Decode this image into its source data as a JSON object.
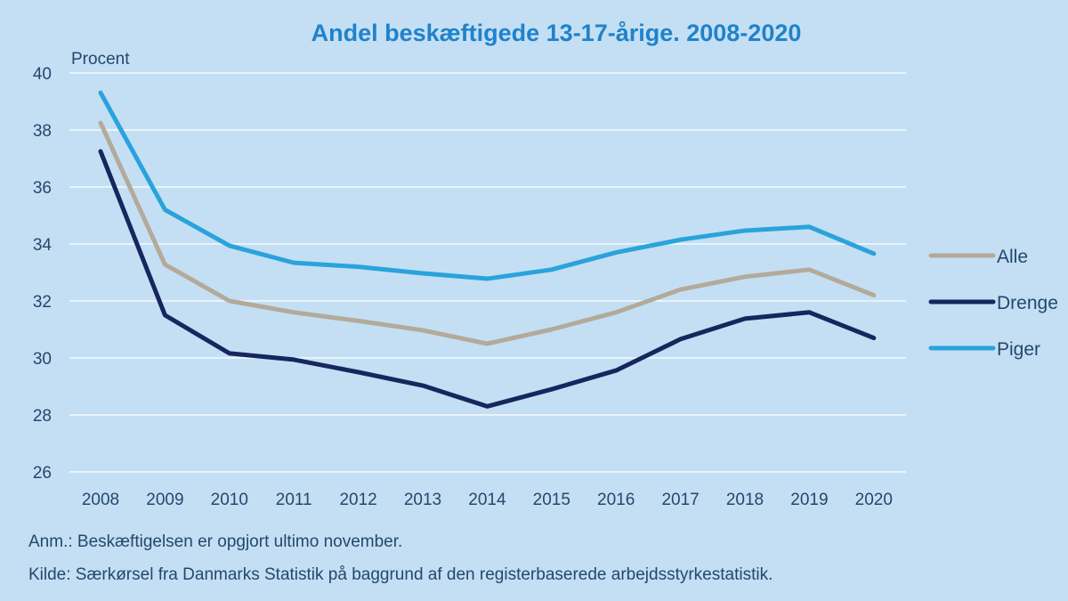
{
  "chart_data": {
    "type": "line",
    "title": "Andel beskæftigede 13-17-årige. 2008-2020",
    "ylabel": "Procent",
    "xlabel": "",
    "ylim": [
      26,
      40
    ],
    "yticks": [
      26,
      28,
      30,
      32,
      34,
      36,
      38,
      40
    ],
    "grid": true,
    "legend_position": "right",
    "categories": [
      "2008",
      "2009",
      "2010",
      "2011",
      "2012",
      "2013",
      "2014",
      "2015",
      "2016",
      "2017",
      "2018",
      "2019",
      "2020"
    ],
    "series": [
      {
        "name": "Alle",
        "color": "#b3aa9a",
        "values": [
          38.25,
          33.28,
          32.0,
          31.6,
          31.3,
          30.97,
          30.5,
          31.0,
          31.6,
          32.4,
          32.85,
          33.1,
          32.2
        ]
      },
      {
        "name": "Drenge",
        "color": "#15275e",
        "values": [
          37.25,
          31.5,
          30.16,
          29.94,
          29.5,
          29.03,
          28.3,
          28.9,
          29.56,
          30.66,
          31.38,
          31.6,
          30.7
        ]
      },
      {
        "name": "Piger",
        "color": "#2aa3dc",
        "values": [
          39.31,
          35.2,
          33.94,
          33.34,
          33.2,
          32.97,
          32.78,
          33.1,
          33.7,
          34.15,
          34.47,
          34.6,
          33.66
        ]
      }
    ]
  },
  "notes": {
    "anm": "Anm.: Beskæftigelsen er opgjort ultimo november.",
    "kilde": "Kilde: Særkørsel fra Danmarks Statistik på baggrund af den registerbaserede arbejdsstyrkestatistik."
  }
}
